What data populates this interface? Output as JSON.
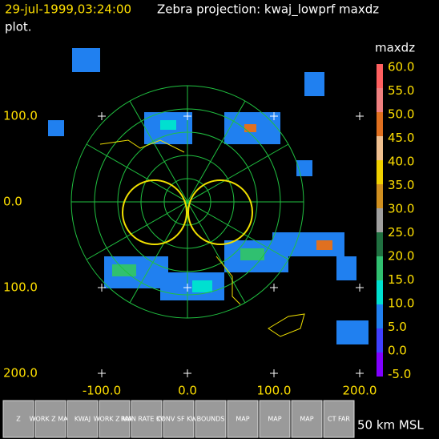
{
  "header": {
    "timestamp": "29-jul-1999,03:24:00",
    "title": "Zebra projection: kwaj_lowprf maxdz",
    "title_cont": "plot."
  },
  "colorbar": {
    "title": "maxdz",
    "labels": [
      "60.0",
      "55.0",
      "50.0",
      "45.0",
      "40.0",
      "35.0",
      "30.0",
      "25.0",
      "20.0",
      "15.0",
      "10.0",
      "5.0",
      "0.0",
      "-5.0"
    ]
  },
  "axes": {
    "y_labels": [
      "100.0",
      "0.0",
      "100.0",
      "200.0"
    ],
    "x_labels": [
      "-100.0",
      "0.0",
      "100.0",
      "200.0"
    ]
  },
  "toolbar": {
    "buttons": [
      "Z",
      "WORK Z MAP",
      "KWAJ",
      "WORK Z MAP",
      "RAIN RATE KWAJ",
      "CONV SF KWA",
      "BOUNDS",
      "MAP",
      "MAP",
      "MAP",
      "CT FAR"
    ],
    "altitude": "50 km MSL"
  }
}
